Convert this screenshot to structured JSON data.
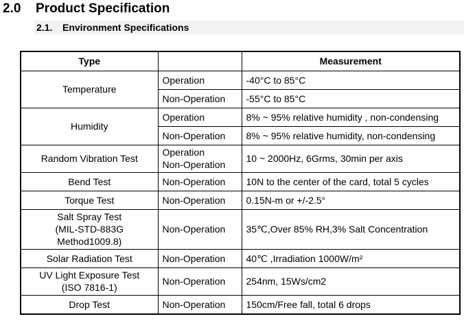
{
  "section": {
    "number": "2.0",
    "title": "Product Specification"
  },
  "subsection": {
    "number": "2.1.",
    "title": "Environment Specifications"
  },
  "table": {
    "headers": {
      "type": "Type",
      "condition": "",
      "measurement": "Measurement"
    },
    "rows": [
      {
        "type": "Temperature",
        "condition": "Operation",
        "measurement": "-40°C to 85°C"
      },
      {
        "condition": "Non-Operation",
        "measurement": "-55°C to 85°C"
      },
      {
        "type": "Humidity",
        "condition": "Operation",
        "measurement": "8% ~ 95% relative humidity , non-condensing"
      },
      {
        "condition": "Non-Operation",
        "measurement": "8% ~ 95% relative humidity, non-condensing"
      },
      {
        "type": "Random Vibration Test",
        "condition_lines": [
          "Operation",
          "Non-Operation"
        ],
        "measurement": "10 ~ 2000Hz, 6Grms, 30min per axis"
      },
      {
        "type": "Bend Test",
        "condition": "Non-Operation",
        "measurement": "10N to the center of the card, total 5 cycles"
      },
      {
        "type": "Torque Test",
        "condition": "Non-Operation",
        "measurement": "0.15N-m or +/-2.5°"
      },
      {
        "type_lines": [
          "Salt Spray Test",
          "(MIL-STD-883G",
          "Method1009.8)"
        ],
        "condition": "Non-Operation",
        "measurement": "35℃,Over 85% RH,3% Salt Concentration"
      },
      {
        "type": "Solar Radiation Test",
        "condition": "Non-Operation",
        "measurement": "40℃ ,Irradiation 1000W/m²"
      },
      {
        "type_lines": [
          "UV Light Exposure Test",
          "(ISO 7816-1)"
        ],
        "condition": "Non-Operation",
        "measurement": "254nm, 15Ws/cm2"
      },
      {
        "type": "Drop Test",
        "condition": "Non-Operation",
        "measurement": "150cm/Free fall, total 6 drops"
      }
    ]
  }
}
